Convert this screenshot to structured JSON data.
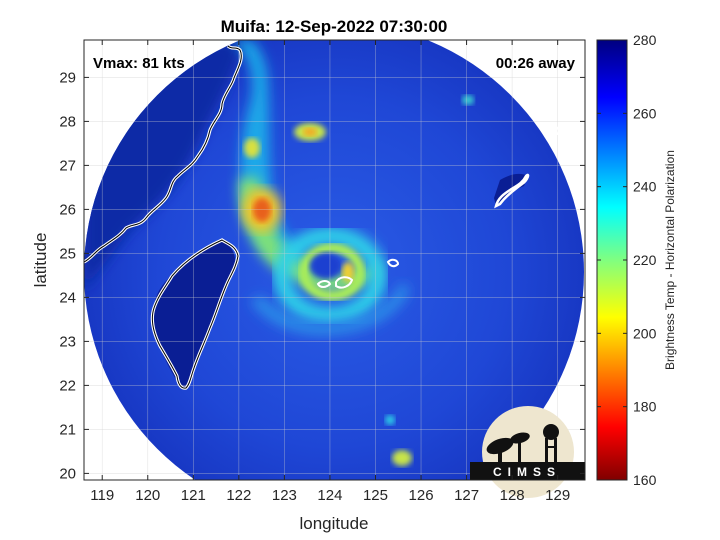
{
  "chart_data": {
    "type": "heatmap",
    "title": "Muifa: 12-Sep-2022 07:30:00",
    "xlabel": "longitude",
    "ylabel": "latitude",
    "xlim": [
      118.6,
      129.6
    ],
    "ylim": [
      19.85,
      29.85
    ],
    "x_ticks": [
      119,
      120,
      121,
      122,
      123,
      124,
      125,
      126,
      127,
      128,
      129
    ],
    "y_ticks": [
      20,
      21,
      22,
      23,
      24,
      25,
      26,
      27,
      28,
      29
    ],
    "grid": true,
    "annotations": {
      "vmax": "Vmax: 81 kts",
      "time_offset": "00:26 away"
    },
    "storm_center": {
      "lon": 124.2,
      "lat": 24.6
    },
    "colorbar": {
      "label": "Brightness Temp - Horizontal Polarization",
      "min": 160,
      "max": 280,
      "ticks": [
        160,
        180,
        200,
        220,
        240,
        260,
        280
      ],
      "colormap": "jet"
    },
    "logo_text": "CIMSS",
    "colors": {
      "background_field": "#1e40d8",
      "cold_outer": "#0b1f9a",
      "coast": "#ffffff"
    }
  }
}
